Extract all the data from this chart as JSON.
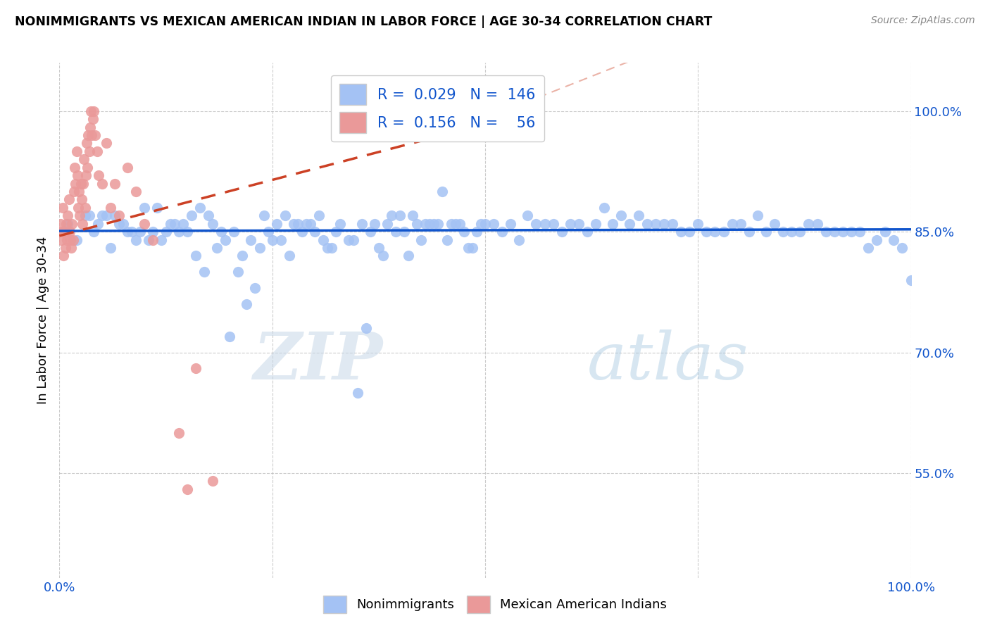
{
  "title": "NONIMMIGRANTS VS MEXICAN AMERICAN INDIAN IN LABOR FORCE | AGE 30-34 CORRELATION CHART",
  "source": "Source: ZipAtlas.com",
  "ylabel": "In Labor Force | Age 30-34",
  "xlim": [
    0.0,
    1.0
  ],
  "ylim": [
    0.42,
    1.06
  ],
  "yticks": [
    0.55,
    0.7,
    0.85,
    1.0
  ],
  "ytick_labels": [
    "55.0%",
    "70.0%",
    "85.0%",
    "100.0%"
  ],
  "blue_color": "#a4c2f4",
  "pink_color": "#ea9999",
  "line_blue": "#1155cc",
  "line_pink": "#cc4125",
  "background": "#ffffff",
  "grid_color": "#b7b7b7",
  "legend_R_blue": "0.029",
  "legend_N_blue": "146",
  "legend_R_pink": "0.156",
  "legend_N_pink": "56",
  "watermark_zip": "ZIP",
  "watermark_atlas": "atlas",
  "blue_x": [
    0.01,
    0.02,
    0.03,
    0.04,
    0.05,
    0.06,
    0.07,
    0.08,
    0.09,
    0.1,
    0.11,
    0.12,
    0.13,
    0.14,
    0.15,
    0.16,
    0.17,
    0.18,
    0.19,
    0.2,
    0.21,
    0.22,
    0.23,
    0.24,
    0.25,
    0.26,
    0.27,
    0.28,
    0.29,
    0.3,
    0.31,
    0.32,
    0.33,
    0.34,
    0.35,
    0.36,
    0.37,
    0.38,
    0.39,
    0.4,
    0.41,
    0.42,
    0.43,
    0.44,
    0.45,
    0.46,
    0.47,
    0.48,
    0.49,
    0.5,
    0.51,
    0.52,
    0.53,
    0.54,
    0.55,
    0.56,
    0.57,
    0.58,
    0.59,
    0.6,
    0.61,
    0.62,
    0.63,
    0.64,
    0.65,
    0.66,
    0.67,
    0.68,
    0.69,
    0.7,
    0.71,
    0.72,
    0.73,
    0.74,
    0.75,
    0.76,
    0.77,
    0.78,
    0.79,
    0.8,
    0.81,
    0.82,
    0.83,
    0.84,
    0.85,
    0.86,
    0.87,
    0.88,
    0.89,
    0.9,
    0.91,
    0.92,
    0.93,
    0.94,
    0.95,
    0.96,
    0.97,
    0.98,
    0.99,
    1.0,
    0.035,
    0.045,
    0.055,
    0.065,
    0.075,
    0.085,
    0.095,
    0.105,
    0.115,
    0.125,
    0.135,
    0.145,
    0.155,
    0.165,
    0.175,
    0.185,
    0.195,
    0.205,
    0.215,
    0.225,
    0.235,
    0.245,
    0.255,
    0.265,
    0.275,
    0.285,
    0.295,
    0.305,
    0.315,
    0.325,
    0.345,
    0.355,
    0.365,
    0.375,
    0.385,
    0.395,
    0.405,
    0.415,
    0.425,
    0.435,
    0.445,
    0.455,
    0.465,
    0.475,
    0.485,
    0.495
  ],
  "blue_y": [
    0.86,
    0.84,
    0.87,
    0.85,
    0.87,
    0.83,
    0.86,
    0.85,
    0.84,
    0.88,
    0.85,
    0.84,
    0.86,
    0.85,
    0.85,
    0.82,
    0.8,
    0.86,
    0.85,
    0.72,
    0.8,
    0.76,
    0.78,
    0.87,
    0.84,
    0.84,
    0.82,
    0.86,
    0.86,
    0.85,
    0.84,
    0.83,
    0.86,
    0.84,
    0.65,
    0.73,
    0.86,
    0.82,
    0.87,
    0.87,
    0.82,
    0.86,
    0.86,
    0.86,
    0.9,
    0.86,
    0.86,
    0.83,
    0.85,
    0.86,
    0.86,
    0.85,
    0.86,
    0.84,
    0.87,
    0.86,
    0.86,
    0.86,
    0.85,
    0.86,
    0.86,
    0.85,
    0.86,
    0.88,
    0.86,
    0.87,
    0.86,
    0.87,
    0.86,
    0.86,
    0.86,
    0.86,
    0.85,
    0.85,
    0.86,
    0.85,
    0.85,
    0.85,
    0.86,
    0.86,
    0.85,
    0.87,
    0.85,
    0.86,
    0.85,
    0.85,
    0.85,
    0.86,
    0.86,
    0.85,
    0.85,
    0.85,
    0.85,
    0.85,
    0.83,
    0.84,
    0.85,
    0.84,
    0.83,
    0.79,
    0.87,
    0.86,
    0.87,
    0.87,
    0.86,
    0.85,
    0.85,
    0.84,
    0.88,
    0.85,
    0.86,
    0.86,
    0.87,
    0.88,
    0.87,
    0.83,
    0.84,
    0.85,
    0.82,
    0.84,
    0.83,
    0.85,
    0.86,
    0.87,
    0.86,
    0.85,
    0.86,
    0.87,
    0.83,
    0.85,
    0.84,
    0.86,
    0.85,
    0.83,
    0.86,
    0.85,
    0.85,
    0.87,
    0.84,
    0.86,
    0.86,
    0.84,
    0.86,
    0.85,
    0.83,
    0.86
  ],
  "pink_x": [
    0.001,
    0.002,
    0.003,
    0.004,
    0.005,
    0.006,
    0.007,
    0.008,
    0.009,
    0.01,
    0.011,
    0.012,
    0.013,
    0.014,
    0.015,
    0.016,
    0.017,
    0.018,
    0.019,
    0.02,
    0.021,
    0.022,
    0.023,
    0.024,
    0.025,
    0.026,
    0.027,
    0.028,
    0.029,
    0.03,
    0.031,
    0.032,
    0.033,
    0.034,
    0.035,
    0.036,
    0.037,
    0.038,
    0.039,
    0.04,
    0.042,
    0.044,
    0.046,
    0.05,
    0.055,
    0.06,
    0.065,
    0.07,
    0.08,
    0.09,
    0.1,
    0.11,
    0.14,
    0.15,
    0.16,
    0.18
  ],
  "pink_y": [
    0.86,
    0.84,
    0.85,
    0.88,
    0.82,
    0.85,
    0.83,
    0.86,
    0.84,
    0.87,
    0.89,
    0.85,
    0.84,
    0.83,
    0.86,
    0.84,
    0.9,
    0.93,
    0.91,
    0.95,
    0.92,
    0.88,
    0.9,
    0.87,
    0.91,
    0.89,
    0.86,
    0.91,
    0.94,
    0.88,
    0.92,
    0.96,
    0.93,
    0.97,
    0.95,
    0.98,
    1.0,
    0.97,
    0.99,
    1.0,
    0.97,
    0.95,
    0.92,
    0.91,
    0.96,
    0.88,
    0.91,
    0.87,
    0.93,
    0.9,
    0.86,
    0.84,
    0.6,
    0.53,
    0.68,
    0.54
  ],
  "pink_line_x0": 0.0,
  "pink_line_y0": 0.845,
  "pink_line_x1": 0.45,
  "pink_line_y1": 0.97,
  "blue_line_x0": 0.0,
  "blue_line_y0": 0.851,
  "blue_line_x1": 1.0,
  "blue_line_y1": 0.853
}
